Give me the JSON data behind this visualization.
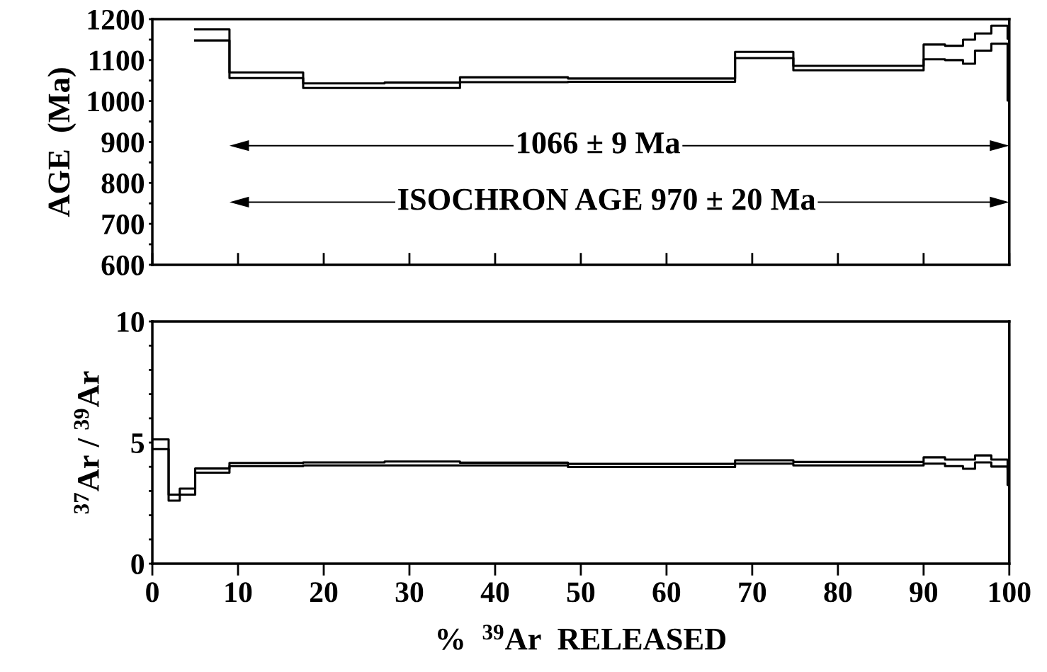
{
  "chart_data": [
    {
      "type": "step",
      "ylabel": "AGE  (Ma)",
      "xlim": [
        0,
        100
      ],
      "xticks": [
        0,
        10,
        20,
        30,
        40,
        50,
        60,
        70,
        80,
        90,
        100
      ],
      "ylim": [
        600,
        1200
      ],
      "yticks": [
        600,
        {
          "value": 650,
          "label": null
        },
        700,
        {
          "value": 750,
          "label": null
        },
        800,
        {
          "value": 850,
          "label": null
        },
        900,
        {
          "value": 950,
          "label": null
        },
        1000,
        {
          "value": 1050,
          "label": null
        },
        1100,
        {
          "value": 1150,
          "label": null
        },
        1200
      ],
      "tick_labels": "y",
      "grid": false,
      "line_style": "solid",
      "marker": "none",
      "x": [
        5.0,
        9.0,
        17.6,
        27.1,
        35.9,
        48.5,
        68.0,
        74.8,
        90.0,
        92.5,
        94.6,
        96.0,
        97.9,
        99.8,
        100
      ],
      "series": [
        {
          "color": "#000000",
          "values": [
            1175,
            1070,
            1043,
            1045,
            1058,
            1055,
            1120,
            1086,
            1138,
            1135,
            1150,
            1165,
            1184,
            1152,
            1152
          ]
        },
        {
          "color": "#000000",
          "values": [
            1148,
            1056,
            1032,
            1032,
            1046,
            1047,
            1105,
            1075,
            1102,
            1100,
            1091,
            1123,
            1140,
            1001,
            1001
          ]
        }
      ],
      "annotations": [
        "1066 ± 9 Ma",
        "ISOCHRON AGE 970 ± 20 Ma"
      ]
    },
    {
      "type": "step",
      "ylabel": "$^{37}$Ar / $^{39}$Ar",
      "xlabel": "%  $^{39}$Ar  RELEASED",
      "xlim": [
        0,
        100
      ],
      "xticks": [
        0,
        10,
        20,
        30,
        40,
        50,
        60,
        70,
        80,
        90,
        100
      ],
      "ylim": [
        0,
        10
      ],
      "yticks": [
        0,
        {
          "value": 1,
          "label": null
        },
        {
          "value": 2,
          "label": null
        },
        {
          "value": 3,
          "label": null
        },
        {
          "value": 4,
          "label": null
        },
        5,
        {
          "value": 6,
          "label": null
        },
        {
          "value": 7,
          "label": null
        },
        {
          "value": 8,
          "label": null
        },
        {
          "value": 9,
          "label": null
        },
        10
      ],
      "grid": false,
      "line_style": "solid",
      "marker": "none",
      "x": [
        0,
        1.9,
        3.2,
        5.0,
        9.0,
        17.6,
        27.1,
        35.9,
        48.5,
        68.0,
        74.8,
        90.0,
        92.5,
        94.6,
        96.0,
        97.9,
        99.8,
        100
      ],
      "series": [
        {
          "color": "#000000",
          "values": [
            5.13,
            2.85,
            3.1,
            3.93,
            4.16,
            4.18,
            4.22,
            4.17,
            4.12,
            4.27,
            4.2,
            4.39,
            4.3,
            4.3,
            4.47,
            4.3,
            3.9,
            3.9
          ]
        },
        {
          "color": "#000000",
          "values": [
            4.73,
            2.6,
            2.85,
            3.76,
            4.03,
            4.06,
            4.06,
            4.06,
            3.99,
            4.13,
            4.06,
            4.13,
            4.03,
            3.92,
            4.18,
            4.01,
            3.25,
            3.25
          ]
        }
      ]
    }
  ]
}
